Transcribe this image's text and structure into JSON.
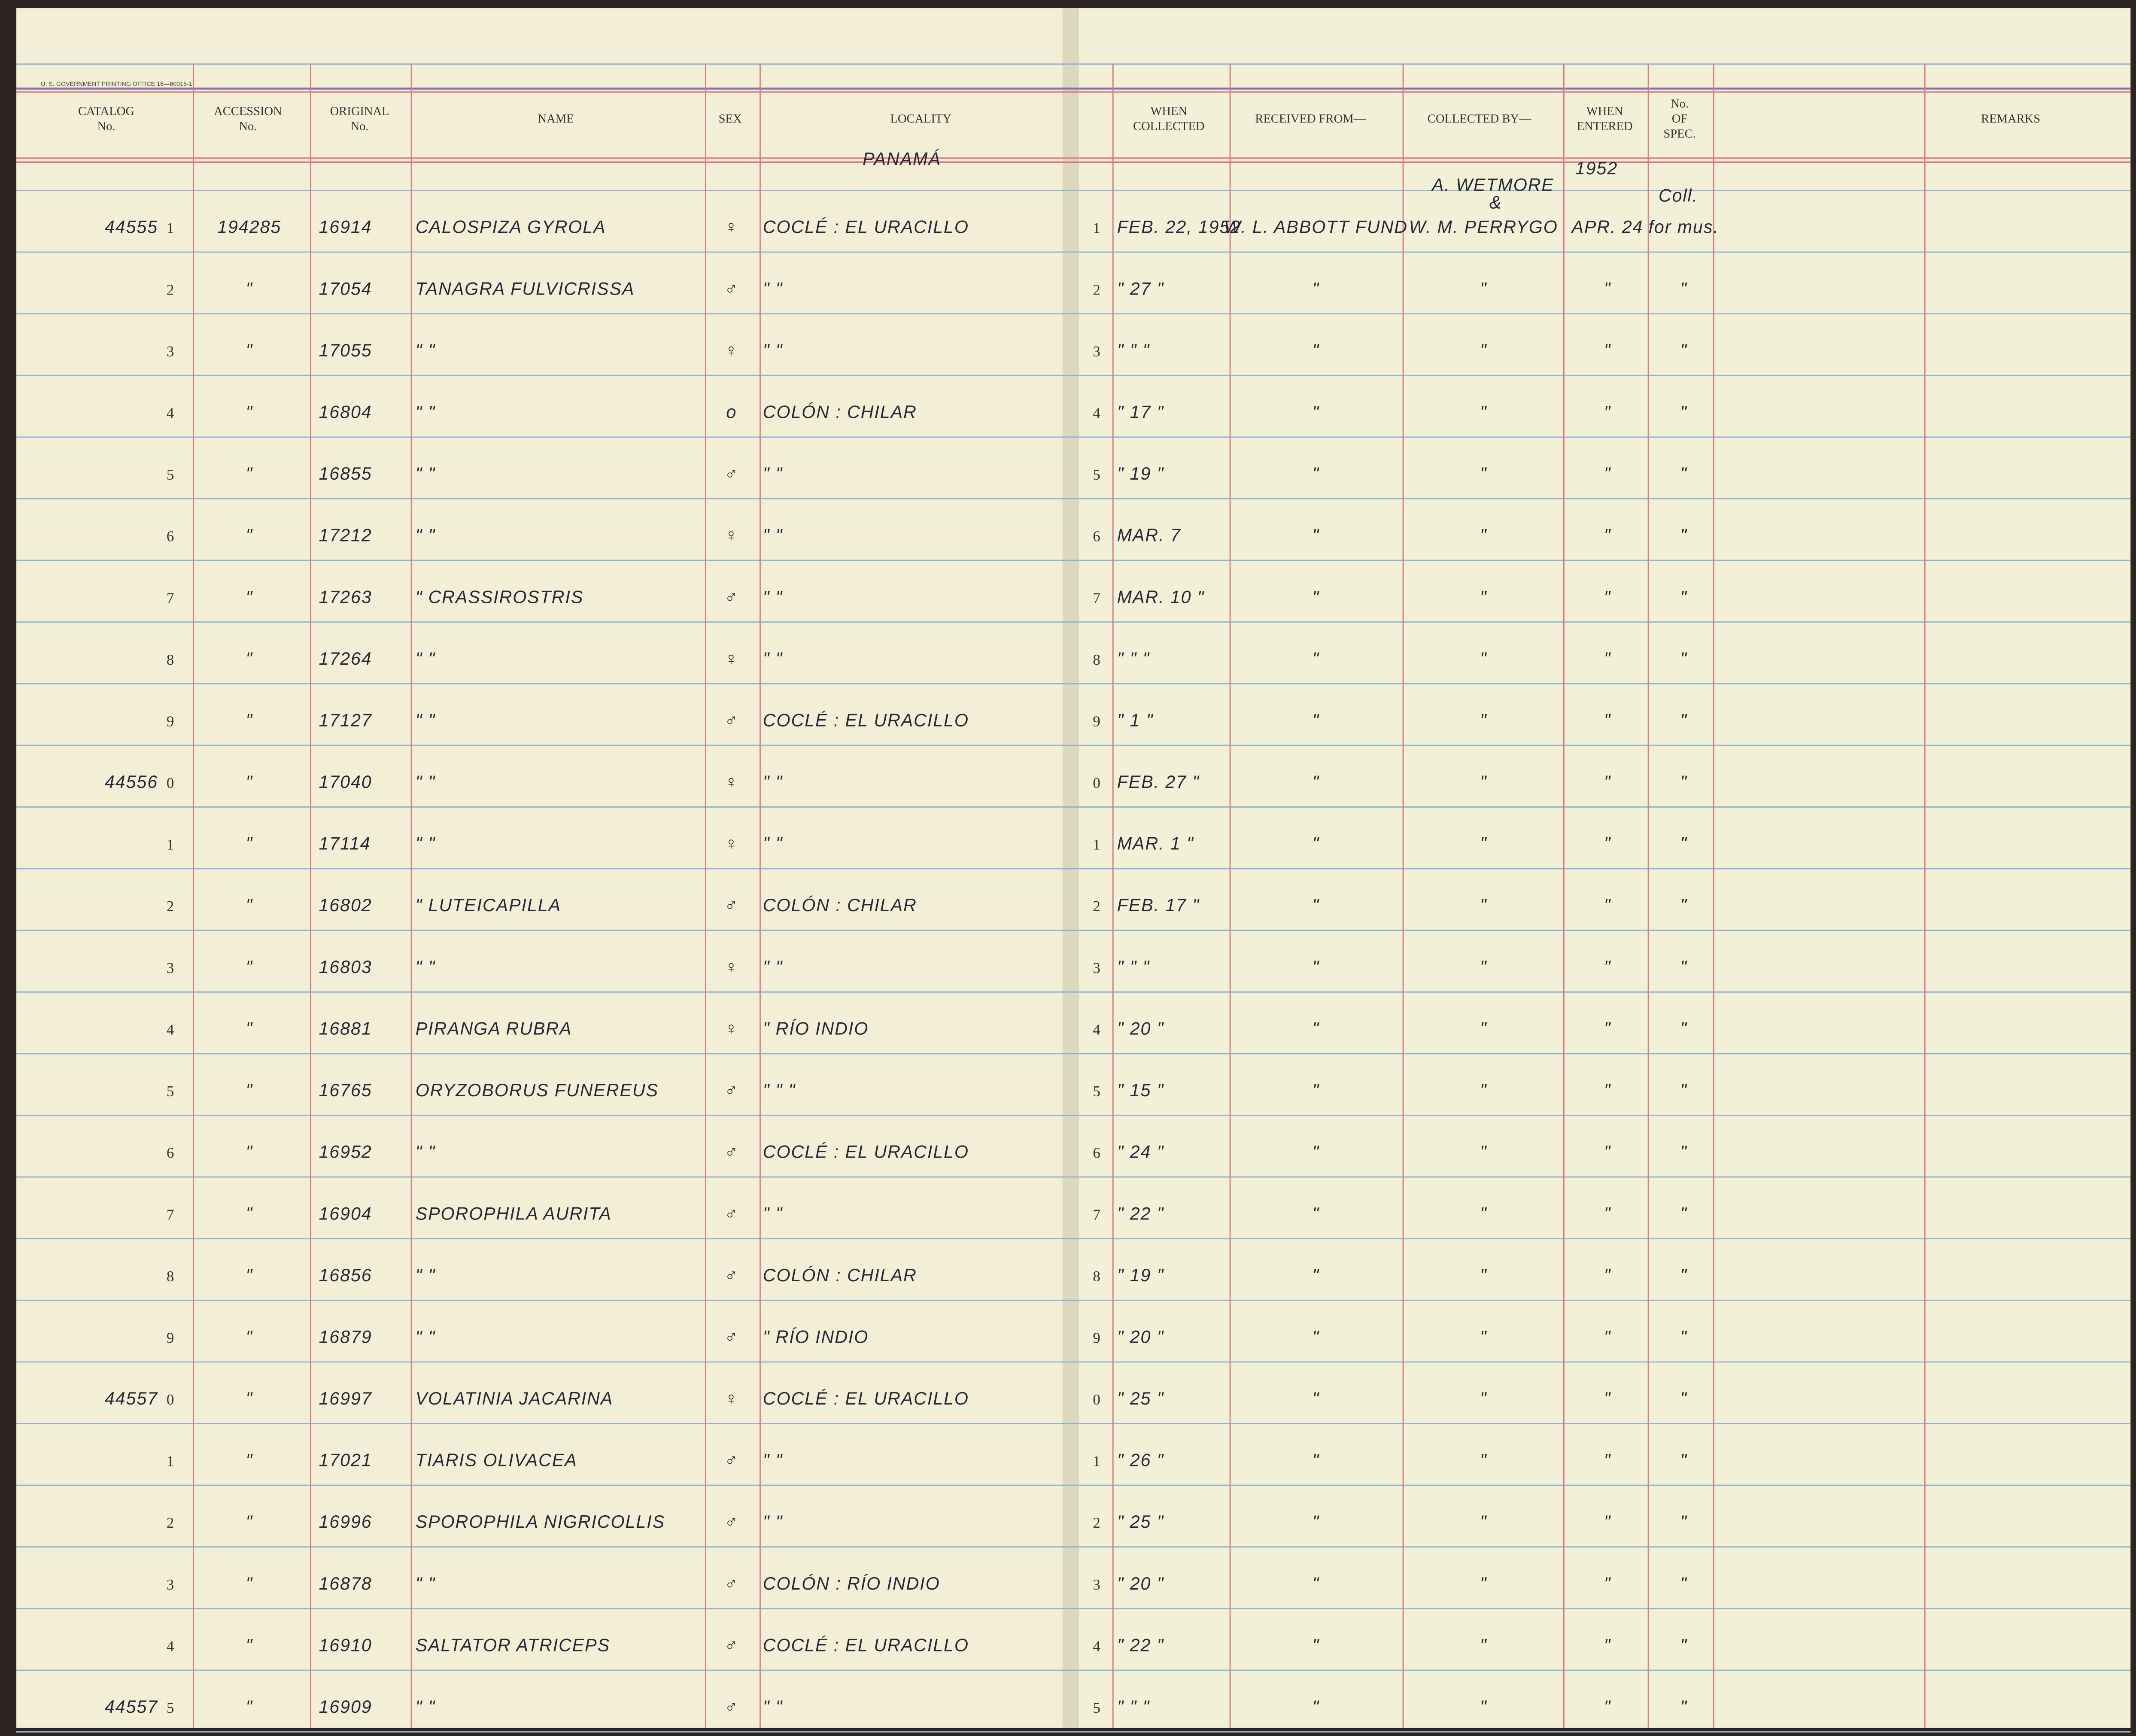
{
  "header": {
    "imprint": "U. S. GOVERNMENT PRINTING OFFICE 16—60015-1",
    "columns": [
      {
        "key": "catalog",
        "lines": [
          "CATALOG",
          "No."
        ]
      },
      {
        "key": "accession",
        "lines": [
          "ACCESSION",
          "No."
        ]
      },
      {
        "key": "original",
        "lines": [
          "ORIGINAL",
          "No."
        ]
      },
      {
        "key": "name",
        "lines": [
          "NAME"
        ]
      },
      {
        "key": "sex",
        "lines": [
          "SEX"
        ]
      },
      {
        "key": "locality",
        "lines": [
          "LOCALITY"
        ]
      },
      {
        "key": "when",
        "lines": [
          "WHEN",
          "COLLECTED"
        ]
      },
      {
        "key": "received",
        "lines": [
          "RECEIVED FROM—"
        ]
      },
      {
        "key": "collected",
        "lines": [
          "COLLECTED BY—"
        ]
      },
      {
        "key": "entered",
        "lines": [
          "WHEN",
          "ENTERED"
        ]
      },
      {
        "key": "spec",
        "lines": [
          "No.",
          "OF",
          "SPEC."
        ]
      },
      {
        "key": "remarks",
        "lines": [
          "REMARKS"
        ]
      }
    ]
  },
  "annotations": {
    "country": "PANAMÁ",
    "collector": "A. WETMORE",
    "amp": "&",
    "year": "1952",
    "coll": "Coll."
  },
  "table": {
    "rows": [
      {
        "catalog": "44555",
        "digit": "1",
        "accession": "194285",
        "original": "16914",
        "name": "CALOSPIZA GYROLA",
        "sex": "♀",
        "locality": "COCLÉ : EL URACILLO",
        "rdigit": "1",
        "when": "FEB. 22, 1952",
        "received": "W. L. ABBOTT FUND",
        "collected": "W. M. PERRYGO",
        "entered": "APR. 24",
        "spec": "for mus."
      },
      {
        "digit": "2",
        "accession": "\"",
        "original": "17054",
        "name": "TANAGRA FULVICRISSA",
        "sex": "♂",
        "locality": "\"        \"",
        "rdigit": "2",
        "when": "\" 27 \"",
        "received": "\"",
        "collected": "\"",
        "entered": "\"",
        "spec": "\""
      },
      {
        "digit": "3",
        "accession": "\"",
        "original": "17055",
        "name": "\"        \"",
        "sex": "♀",
        "locality": "\"        \"",
        "rdigit": "3",
        "when": "\"  \"  \"",
        "received": "\"",
        "collected": "\"",
        "entered": "\"",
        "spec": "\""
      },
      {
        "digit": "4",
        "accession": "\"",
        "original": "16804",
        "name": "\"        \"",
        "sex": "o",
        "locality": "COLÓN : CHILAR",
        "rdigit": "4",
        "when": "\" 17 \"",
        "received": "\"",
        "collected": "\"",
        "entered": "\"",
        "spec": "\""
      },
      {
        "digit": "5",
        "accession": "\"",
        "original": "16855",
        "name": "\"        \"",
        "sex": "♂",
        "locality": "\"        \"",
        "rdigit": "5",
        "when": "\" 19 \"",
        "received": "\"",
        "collected": "\"",
        "entered": "\"",
        "spec": "\""
      },
      {
        "digit": "6",
        "accession": "\"",
        "original": "17212",
        "name": "\"        \"",
        "sex": "♀",
        "locality": "\"        \"",
        "rdigit": "6",
        "when": "MAR. 7",
        "received": "\"",
        "collected": "\"",
        "entered": "\"",
        "spec": "\""
      },
      {
        "digit": "7",
        "accession": "\"",
        "original": "17263",
        "name": "\"   CRASSIROSTRIS",
        "sex": "♂",
        "locality": "\"        \"",
        "rdigit": "7",
        "when": "MAR. 10 \"",
        "received": "\"",
        "collected": "\"",
        "entered": "\"",
        "spec": "\""
      },
      {
        "digit": "8",
        "accession": "\"",
        "original": "17264",
        "name": "\"        \"",
        "sex": "♀",
        "locality": "\"        \"",
        "rdigit": "8",
        "when": "\"  \"  \"",
        "received": "\"",
        "collected": "\"",
        "entered": "\"",
        "spec": "\""
      },
      {
        "digit": "9",
        "accession": "\"",
        "original": "17127",
        "name": "\"        \"",
        "sex": "♂",
        "locality": "COCLÉ : EL URACILLO",
        "rdigit": "9",
        "when": "\" 1 \"",
        "received": "\"",
        "collected": "\"",
        "entered": "\"",
        "spec": "\""
      },
      {
        "catalog": "44556",
        "digit": "0",
        "accession": "\"",
        "original": "17040",
        "name": "\"        \"",
        "sex": "♀",
        "locality": "\"        \"",
        "rdigit": "0",
        "when": "FEB. 27 \"",
        "received": "\"",
        "collected": "\"",
        "entered": "\"",
        "spec": "\""
      },
      {
        "digit": "1",
        "accession": "\"",
        "original": "17114",
        "name": "\"        \"",
        "sex": "♀",
        "locality": "\"        \"",
        "rdigit": "1",
        "when": "MAR. 1 \"",
        "received": "\"",
        "collected": "\"",
        "entered": "\"",
        "spec": "\""
      },
      {
        "digit": "2",
        "accession": "\"",
        "original": "16802",
        "name": "\"   LUTEICAPILLA",
        "sex": "♂",
        "locality": "COLÓN : CHILAR",
        "rdigit": "2",
        "when": "FEB. 17 \"",
        "received": "\"",
        "collected": "\"",
        "entered": "\"",
        "spec": "\""
      },
      {
        "digit": "3",
        "accession": "\"",
        "original": "16803",
        "name": "\"        \"",
        "sex": "♀",
        "locality": "\"        \"",
        "rdigit": "3",
        "when": "\"  \"  \"",
        "received": "\"",
        "collected": "\"",
        "entered": "\"",
        "spec": "\""
      },
      {
        "digit": "4",
        "accession": "\"",
        "original": "16881",
        "name": "PIRANGA RUBRA",
        "sex": "♀",
        "locality": "\"     RÍO INDIO",
        "rdigit": "4",
        "when": "\" 20 \"",
        "received": "\"",
        "collected": "\"",
        "entered": "\"",
        "spec": "\""
      },
      {
        "digit": "5",
        "accession": "\"",
        "original": "16765",
        "name": "ORYZOBORUS FUNEREUS",
        "sex": "♂",
        "locality": "\"     \"     \"",
        "rdigit": "5",
        "when": "\" 15 \"",
        "received": "\"",
        "collected": "\"",
        "entered": "\"",
        "spec": "\""
      },
      {
        "digit": "6",
        "accession": "\"",
        "original": "16952",
        "name": "\"        \"",
        "sex": "♂",
        "locality": "COCLÉ : EL URACILLO",
        "rdigit": "6",
        "when": "\" 24 \"",
        "received": "\"",
        "collected": "\"",
        "entered": "\"",
        "spec": "\""
      },
      {
        "digit": "7",
        "accession": "\"",
        "original": "16904",
        "name": "SPOROPHILA AURITA",
        "sex": "♂",
        "locality": "\"        \"",
        "rdigit": "7",
        "when": "\" 22 \"",
        "received": "\"",
        "collected": "\"",
        "entered": "\"",
        "spec": "\""
      },
      {
        "digit": "8",
        "accession": "\"",
        "original": "16856",
        "name": "\"        \"",
        "sex": "♂",
        "locality": "COLÓN : CHILAR",
        "rdigit": "8",
        "when": "\" 19 \"",
        "received": "\"",
        "collected": "\"",
        "entered": "\"",
        "spec": "\""
      },
      {
        "digit": "9",
        "accession": "\"",
        "original": "16879",
        "name": "\"        \"",
        "sex": "♂",
        "locality": "\"     RÍO INDIO",
        "rdigit": "9",
        "when": "\" 20 \"",
        "received": "\"",
        "collected": "\"",
        "entered": "\"",
        "spec": "\""
      },
      {
        "catalog": "44557",
        "digit": "0",
        "accession": "\"",
        "original": "16997",
        "name": "VOLATINIA JACARINA",
        "sex": "♀",
        "locality": "COCLÉ : EL URACILLO",
        "rdigit": "0",
        "when": "\" 25 \"",
        "received": "\"",
        "collected": "\"",
        "entered": "\"",
        "spec": "\""
      },
      {
        "digit": "1",
        "accession": "\"",
        "original": "17021",
        "name": "TIARIS OLIVACEA",
        "sex": "♂",
        "locality": "\"        \"",
        "rdigit": "1",
        "when": "\" 26 \"",
        "received": "\"",
        "collected": "\"",
        "entered": "\"",
        "spec": "\""
      },
      {
        "digit": "2",
        "accession": "\"",
        "original": "16996",
        "name": "SPOROPHILA NIGRICOLLIS",
        "sex": "♂",
        "locality": "\"        \"",
        "rdigit": "2",
        "when": "\" 25 \"",
        "received": "\"",
        "collected": "\"",
        "entered": "\"",
        "spec": "\""
      },
      {
        "digit": "3",
        "accession": "\"",
        "original": "16878",
        "name": "\"        \"",
        "sex": "♂",
        "locality": "COLÓN : RÍO INDIO",
        "rdigit": "3",
        "when": "\" 20 \"",
        "received": "\"",
        "collected": "\"",
        "entered": "\"",
        "spec": "\""
      },
      {
        "digit": "4",
        "accession": "\"",
        "original": "16910",
        "name": "SALTATOR ATRICEPS",
        "sex": "♂",
        "locality": "COCLÉ : EL URACILLO",
        "rdigit": "4",
        "when": "\" 22 \"",
        "received": "\"",
        "collected": "\"",
        "entered": "\"",
        "spec": "\""
      },
      {
        "catalog": "44557",
        "digit": "5",
        "accession": "\"",
        "original": "16909",
        "name": "\"        \"",
        "sex": "♂",
        "locality": "\"        \"",
        "rdigit": "5",
        "when": "\"  \"  \"",
        "received": "\"",
        "collected": "\"",
        "entered": "\"",
        "spec": "\""
      }
    ]
  }
}
